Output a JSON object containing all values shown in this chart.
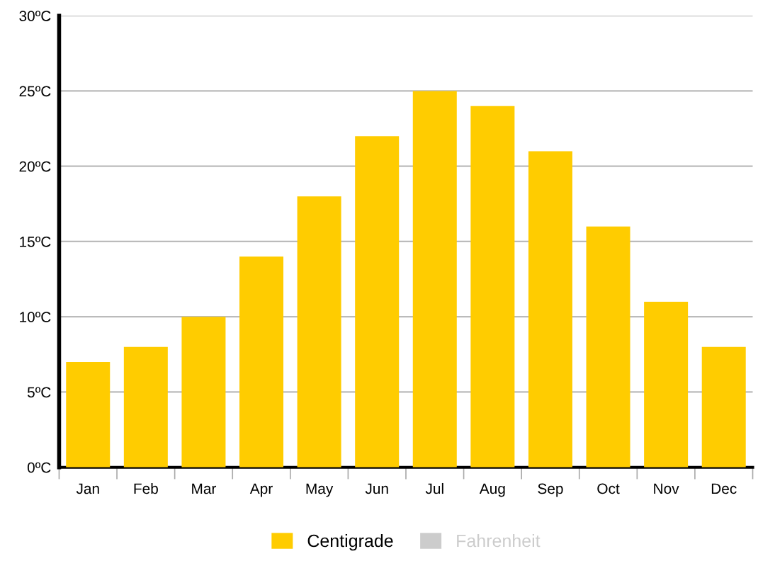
{
  "chart_data": {
    "type": "bar",
    "categories": [
      "Jan",
      "Feb",
      "Mar",
      "Apr",
      "May",
      "Jun",
      "Jul",
      "Aug",
      "Sep",
      "Oct",
      "Nov",
      "Dec"
    ],
    "series": [
      {
        "name": "Centigrade",
        "color": "#ffcc00",
        "values": [
          7,
          8,
          10,
          14,
          18,
          22,
          25,
          24,
          21,
          16,
          11,
          8
        ]
      },
      {
        "name": "Fahrenheit",
        "color": "#cccccc",
        "values": [
          null,
          null,
          null,
          null,
          null,
          null,
          null,
          null,
          null,
          null,
          null,
          null
        ]
      }
    ],
    "ylim": [
      0,
      30
    ],
    "yticks": [
      {
        "value": 0,
        "label": "0ºC"
      },
      {
        "value": 5,
        "label": "5ºC"
      },
      {
        "value": 10,
        "label": "10ºC"
      },
      {
        "value": 15,
        "label": "15ºC"
      },
      {
        "value": 20,
        "label": "20ºC"
      },
      {
        "value": 25,
        "label": "25ºC"
      },
      {
        "value": 30,
        "label": "30ºC"
      }
    ],
    "grid": "y",
    "legend": "bottom"
  }
}
